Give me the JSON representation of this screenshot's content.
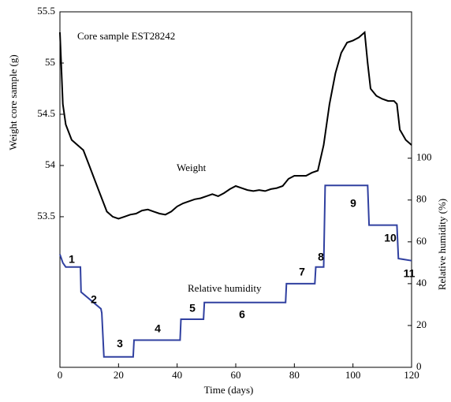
{
  "chart_data": {
    "type": "line",
    "annotations": [
      "Core sample EST28242",
      "1",
      "2",
      "3",
      "4",
      "5",
      "6",
      "7",
      "8",
      "9",
      "10",
      "11"
    ],
    "xlabel": "Time (days)",
    "ylabel": "Weight core sample (g)",
    "y2label": "Relative humidity (%)",
    "xlim": [
      0,
      120
    ],
    "xticks": [
      0,
      20,
      40,
      60,
      80,
      100,
      120
    ],
    "ylim": [
      52.03,
      55.5
    ],
    "yticks": [
      53.5,
      54,
      54.5,
      55,
      55.5
    ],
    "y2lim": [
      0,
      170
    ],
    "y2ticks": [
      0,
      20,
      40,
      60,
      80,
      100
    ],
    "series": [
      {
        "name": "Weight",
        "color": "#000000",
        "x": [
          0,
          1,
          2,
          4,
          6,
          8,
          10,
          12,
          14,
          16,
          18,
          20,
          22,
          24,
          26,
          28,
          30,
          32,
          34,
          36,
          38,
          40,
          42,
          44,
          46,
          48,
          50,
          52,
          54,
          56,
          58,
          60,
          62,
          64,
          66,
          68,
          70,
          72,
          74,
          76,
          78,
          80,
          82,
          84,
          86,
          88,
          90,
          92,
          94,
          96,
          98,
          100,
          102,
          104,
          105,
          106,
          108,
          110,
          112,
          114,
          115,
          116,
          118,
          120
        ],
        "values": [
          55.3,
          54.6,
          54.4,
          54.25,
          54.2,
          54.15,
          54.0,
          53.85,
          53.7,
          53.55,
          53.5,
          53.48,
          53.5,
          53.52,
          53.53,
          53.56,
          53.57,
          53.55,
          53.53,
          53.52,
          53.55,
          53.6,
          53.63,
          53.65,
          53.67,
          53.68,
          53.7,
          53.72,
          53.7,
          53.73,
          53.77,
          53.8,
          53.78,
          53.76,
          53.75,
          53.76,
          53.75,
          53.77,
          53.78,
          53.8,
          53.87,
          53.9,
          53.9,
          53.9,
          53.93,
          53.95,
          54.2,
          54.6,
          54.9,
          55.1,
          55.2,
          55.22,
          55.25,
          55.3,
          55.0,
          54.75,
          54.68,
          54.65,
          54.63,
          54.63,
          54.6,
          54.35,
          54.25,
          54.2
        ]
      },
      {
        "name": "Relative humidity",
        "color": "#3040a0",
        "axis": "y2",
        "x": [
          0,
          1,
          2,
          7,
          7.2,
          14,
          14.3,
          15,
          25,
          25.3,
          41,
          41.3,
          49,
          49.3,
          77,
          77.3,
          87,
          87.3,
          90,
          90.5,
          105,
          105.5,
          115,
          115.5,
          120
        ],
        "values": [
          54,
          50,
          48,
          48,
          36,
          28,
          26,
          5,
          5,
          13,
          13,
          23,
          23,
          31,
          31,
          40,
          40,
          48,
          48,
          87,
          87,
          68,
          68,
          52,
          51
        ]
      }
    ]
  }
}
